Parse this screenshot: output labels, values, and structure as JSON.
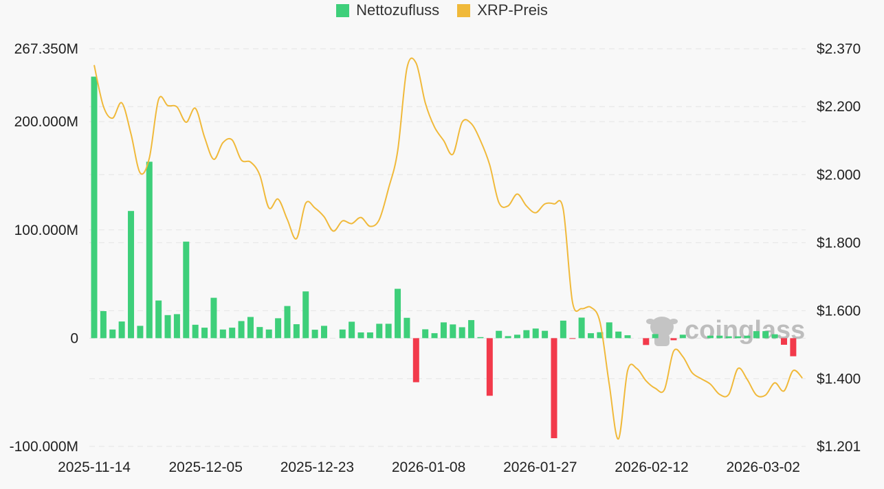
{
  "chart_data": {
    "type": "bar",
    "legend": [
      {
        "label": "Nettozufluss",
        "color": "#3ecf7a"
      },
      {
        "label": "XRP-Preis",
        "color": "#f0b93a"
      }
    ],
    "legend_placement": "top-center",
    "negative_color": "#f23a4b",
    "x_tick_labels": [
      "2025-11-14",
      "2025-12-05",
      "2025-12-23",
      "2026-01-08",
      "2026-01-27",
      "2026-02-12",
      "2026-03-02"
    ],
    "x_tick_every": 12,
    "left_axis": {
      "ticks": [
        "-100.000M",
        "0",
        "100.000M",
        "200.000M",
        "267.350M"
      ],
      "tick_values": [
        -100,
        0,
        100,
        200,
        267.35
      ],
      "range": [
        -100,
        267.35
      ],
      "unit": "M"
    },
    "right_axis": {
      "ticks": [
        "$1.201",
        "$1.400",
        "$1.600",
        "$1.800",
        "$2.000",
        "$2.200",
        "$2.370"
      ],
      "tick_values": [
        1.201,
        1.4,
        1.6,
        1.8,
        2.0,
        2.2,
        2.37
      ],
      "range": [
        1.201,
        2.37
      ]
    },
    "series": [
      {
        "name": "Nettozufluss",
        "type": "bar",
        "values": [
          241.6,
          25,
          8,
          15.4,
          117.5,
          11.4,
          163,
          34.8,
          21.3,
          22.2,
          89.2,
          12.4,
          9.7,
          37.3,
          8,
          9.7,
          15.8,
          19.6,
          10.3,
          8,
          18.4,
          29.7,
          12.9,
          43.2,
          7.8,
          11.4,
          0,
          8,
          15.2,
          5.3,
          5.3,
          13.3,
          13.3,
          45.6,
          18.8,
          -40.7,
          8.2,
          4.6,
          14.6,
          12.7,
          10.1,
          16.7,
          1,
          -53.2,
          6.8,
          1.9,
          3.2,
          7.4,
          8.9,
          6.8,
          -92.4,
          16.2,
          -0.5,
          19,
          4.6,
          5.5,
          14.6,
          6.1,
          2.7,
          0,
          -6.3,
          3.8,
          0,
          -1.9,
          3.2,
          0,
          0,
          2.3,
          2.3,
          1.7,
          1.7,
          2.3,
          6.5,
          6.5,
          3.6,
          -6.1,
          -16.7,
          0
        ]
      },
      {
        "name": "XRP-Preis",
        "type": "line",
        "values": [
          2.322,
          2.201,
          2.166,
          2.211,
          2.12,
          2.005,
          2.049,
          2.221,
          2.203,
          2.199,
          2.154,
          2.195,
          2.11,
          2.045,
          2.094,
          2.102,
          2.043,
          2.037,
          1.999,
          1.902,
          1.928,
          1.868,
          1.812,
          1.916,
          1.902,
          1.876,
          1.834,
          1.864,
          1.856,
          1.874,
          1.848,
          1.868,
          1.959,
          2.07,
          2.312,
          2.328,
          2.211,
          2.14,
          2.1,
          2.06,
          2.154,
          2.15,
          2.1,
          2.029,
          1.918,
          1.908,
          1.943,
          1.908,
          1.888,
          1.914,
          1.914,
          1.898,
          1.626,
          1.606,
          1.61,
          1.566,
          1.384,
          1.223,
          1.424,
          1.43,
          1.394,
          1.372,
          1.368,
          1.481,
          1.465,
          1.418,
          1.4,
          1.384,
          1.354,
          1.354,
          1.43,
          1.398,
          1.352,
          1.352,
          1.388,
          1.364,
          1.424,
          1.402
        ]
      }
    ],
    "grid": true,
    "watermark": "coinglass"
  }
}
